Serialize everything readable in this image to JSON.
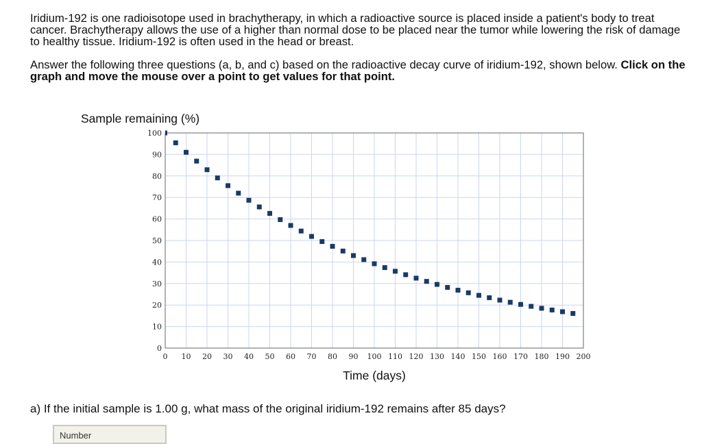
{
  "intro": {
    "paragraph1": "Iridium-192 is one radioisotope used in brachytherapy, in which a radioactive source is placed inside a patient's body to treat cancer. Brachytherapy allows the use of a higher than normal dose to be placed near the tumor while lowering the risk of damage to healthy tissue. Iridium-192 is often used in the head or breast.",
    "paragraph2": "Answer the following three questions (a, b, and c) based on the radioactive decay curve of iridium-192, shown below.",
    "instruction": "Click on the graph and move the mouse over a point to get values for that point."
  },
  "chart_data": {
    "type": "scatter",
    "xlabel": "Time (days)",
    "ylabel": "Sample remaining (%)",
    "xlim": [
      0,
      200
    ],
    "ylim": [
      0,
      100
    ],
    "xticks": [
      0,
      10,
      20,
      30,
      40,
      50,
      60,
      70,
      80,
      90,
      100,
      110,
      120,
      130,
      140,
      150,
      160,
      170,
      180,
      190,
      200
    ],
    "yticks": [
      0,
      10,
      20,
      30,
      40,
      50,
      60,
      70,
      80,
      90,
      100
    ],
    "grid": true,
    "marker_color": "#1a3a66",
    "grid_color": "#c8d6f2",
    "x": [
      0,
      5,
      10,
      15,
      20,
      25,
      30,
      35,
      40,
      45,
      50,
      55,
      60,
      65,
      70,
      75,
      80,
      85,
      90,
      95,
      100,
      105,
      110,
      115,
      120,
      125,
      130,
      135,
      140,
      145,
      150,
      155,
      160,
      165,
      170,
      175,
      180,
      185,
      190,
      195
    ],
    "y": [
      100.0,
      95.4,
      91.0,
      86.9,
      82.9,
      79.1,
      75.5,
      72.0,
      68.7,
      65.6,
      62.6,
      59.7,
      57.0,
      54.4,
      51.9,
      49.5,
      47.3,
      45.1,
      43.0,
      41.1,
      39.2,
      37.4,
      35.7,
      34.1,
      32.5,
      31.0,
      29.6,
      28.2,
      26.9,
      25.7,
      24.5,
      23.4,
      22.3,
      21.3,
      20.3,
      19.4,
      18.5,
      17.7,
      16.9,
      16.1
    ]
  },
  "question_a": "a) If the initial sample is 1.00 g, what mass of the original iridium-192 remains after 85 days?",
  "answer_placeholder": "Number"
}
